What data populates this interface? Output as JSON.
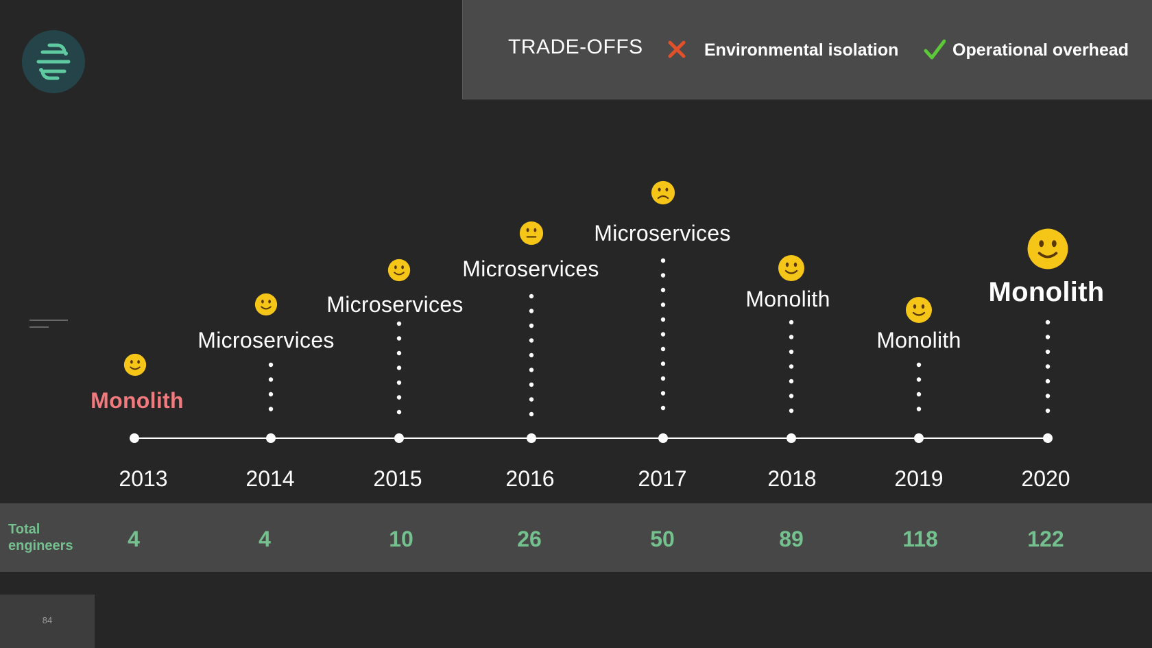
{
  "tradeoffs": {
    "title": "TRADE-OFFS",
    "items": [
      {
        "icon": "cross-icon",
        "color": "#e0502a",
        "label": "Environmental isolation"
      },
      {
        "icon": "check-icon",
        "color": "#5cc83a",
        "label": "Operational overhead"
      }
    ]
  },
  "timeline": {
    "entries": [
      {
        "year": "2013",
        "architecture": "Monolith",
        "mood": "happy",
        "engineers": "4"
      },
      {
        "year": "2014",
        "architecture": "Microservices",
        "mood": "happy",
        "engineers": "4"
      },
      {
        "year": "2015",
        "architecture": "Microservices",
        "mood": "happy",
        "engineers": "10"
      },
      {
        "year": "2016",
        "architecture": "Microservices",
        "mood": "neutral",
        "engineers": "26"
      },
      {
        "year": "2017",
        "architecture": "Microservices",
        "mood": "sad",
        "engineers": "50"
      },
      {
        "year": "2018",
        "architecture": "Monolith",
        "mood": "happy",
        "engineers": "89"
      },
      {
        "year": "2019",
        "architecture": "Monolith",
        "mood": "happy",
        "engineers": "118"
      },
      {
        "year": "2020",
        "architecture": "Monolith",
        "mood": "happy",
        "engineers": "122"
      }
    ]
  },
  "engineers_label": "Total engineers",
  "page_number": "84",
  "colors": {
    "highlight_monolith": "#f07a7e",
    "engineer_count": "#74c08e",
    "emoji_face": "#f5c518"
  }
}
